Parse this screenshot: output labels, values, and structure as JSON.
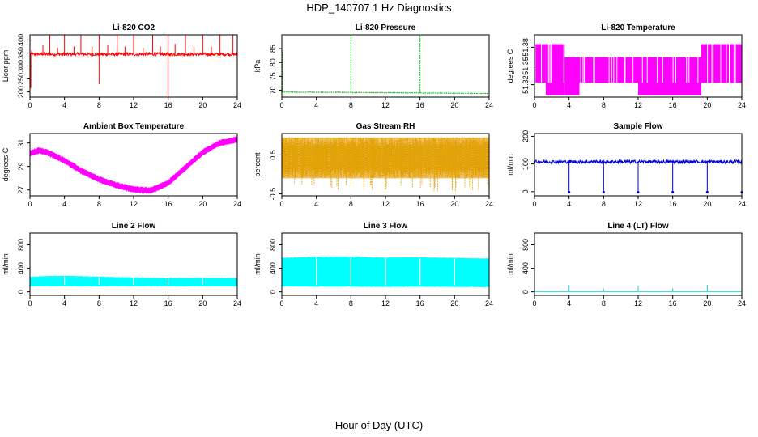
{
  "figure": {
    "title": "HDP_140707  1 Hz Diagnostics",
    "xlabel": "Hour of Day (UTC)"
  },
  "chart_data": [
    {
      "type": "line",
      "title": "Li-820 CO2",
      "ylabel": "Licor ppm",
      "color": "#ff0000",
      "xlim": [
        0,
        24
      ],
      "ylim": [
        180,
        420
      ],
      "xticks": [
        0,
        4,
        8,
        12,
        16,
        20,
        24
      ],
      "yticks": [
        200,
        250,
        300,
        350,
        400
      ],
      "baseline": 345,
      "noise": 6,
      "spikes": [
        {
          "x": 0.1,
          "y": 215
        },
        {
          "x": 0.2,
          "y": 360
        },
        {
          "x": 1.5,
          "y": 380
        },
        {
          "x": 2.3,
          "y": 440
        },
        {
          "x": 3.2,
          "y": 370
        },
        {
          "x": 4.0,
          "y": 440
        },
        {
          "x": 5.1,
          "y": 375
        },
        {
          "x": 5.9,
          "y": 440
        },
        {
          "x": 7.2,
          "y": 375
        },
        {
          "x": 8.0,
          "y": 230
        },
        {
          "x": 8.0,
          "y": 440
        },
        {
          "x": 9.0,
          "y": 380
        },
        {
          "x": 10.1,
          "y": 440
        },
        {
          "x": 11.0,
          "y": 375
        },
        {
          "x": 12.0,
          "y": 440
        },
        {
          "x": 13.1,
          "y": 370
        },
        {
          "x": 14.2,
          "y": 440
        },
        {
          "x": 15.1,
          "y": 375
        },
        {
          "x": 16.0,
          "y": 180
        },
        {
          "x": 16.0,
          "y": 440
        },
        {
          "x": 16.8,
          "y": 385
        },
        {
          "x": 18.0,
          "y": 440
        },
        {
          "x": 19.0,
          "y": 375
        },
        {
          "x": 20.0,
          "y": 440
        },
        {
          "x": 21.0,
          "y": 375
        },
        {
          "x": 22.0,
          "y": 440
        },
        {
          "x": 23.5,
          "y": 440
        },
        {
          "x": 24.0,
          "y": 320
        }
      ]
    },
    {
      "type": "line",
      "title": "Li-820 Pressure",
      "ylabel": "kPa",
      "color": "#00c000",
      "xlim": [
        0,
        24
      ],
      "ylim": [
        67.5,
        90
      ],
      "xticks": [
        0,
        4,
        8,
        12,
        16,
        20,
        24
      ],
      "yticks": [
        70,
        75,
        80,
        85
      ],
      "trend": [
        [
          0,
          69.3
        ],
        [
          8,
          69.2
        ],
        [
          16,
          69.0
        ],
        [
          24,
          68.8
        ]
      ],
      "noise": 0.2,
      "spikes": [
        {
          "x": 0.05,
          "y": 84.5
        },
        {
          "x": 8.0,
          "y": 90
        },
        {
          "x": 16.0,
          "y": 90
        },
        {
          "x": 24.0,
          "y": 88.5
        }
      ]
    },
    {
      "type": "line",
      "title": "Li-820 Temperature",
      "ylabel": "degrees C",
      "color": "#ff00ff",
      "xlim": [
        0,
        24
      ],
      "ylim": [
        51.3,
        51.4
      ],
      "xticks": [
        0,
        4,
        8,
        12,
        16,
        20,
        24
      ],
      "yticks": [
        51.32,
        51.35,
        51.38
      ],
      "yticklabels": [
        "51.32",
        "51.35",
        "51.38"
      ],
      "levels": [
        51.303,
        51.323,
        51.344,
        51.364,
        51.385
      ],
      "segments": [
        {
          "x0": 0,
          "x1": 1.3,
          "lo": 1,
          "hi": 4
        },
        {
          "x0": 1.3,
          "x1": 3.5,
          "lo": 0,
          "hi": 4
        },
        {
          "x0": 3.5,
          "x1": 5.2,
          "lo": 0,
          "hi": 3
        },
        {
          "x0": 5.2,
          "x1": 12.0,
          "lo": 1,
          "hi": 3
        },
        {
          "x0": 12.0,
          "x1": 19.3,
          "lo": 0,
          "hi": 3
        },
        {
          "x0": 19.3,
          "x1": 22.2,
          "lo": 1,
          "hi": 4
        },
        {
          "x0": 22.2,
          "x1": 24,
          "lo": 1,
          "hi": 4
        }
      ]
    },
    {
      "type": "line",
      "title": "Ambient Box Temperature",
      "ylabel": "degrees C",
      "color": "#ff00ff",
      "xlim": [
        0,
        24
      ],
      "ylim": [
        26.5,
        31.8
      ],
      "xticks": [
        0,
        4,
        8,
        12,
        16,
        20,
        24
      ],
      "yticks": [
        27,
        29,
        31
      ],
      "curve": [
        [
          0,
          30.1
        ],
        [
          1,
          30.35
        ],
        [
          2,
          30.2
        ],
        [
          4,
          29.5
        ],
        [
          6,
          28.6
        ],
        [
          8,
          27.9
        ],
        [
          10,
          27.4
        ],
        [
          12,
          27.05
        ],
        [
          14,
          26.95
        ],
        [
          16,
          27.6
        ],
        [
          18,
          28.9
        ],
        [
          20,
          30.2
        ],
        [
          22,
          31.0
        ],
        [
          24,
          31.3
        ]
      ],
      "band": 0.25
    },
    {
      "type": "line",
      "title": "Gas Stream RH",
      "ylabel": "percent",
      "color": "#e0a000",
      "xlim": [
        0,
        24
      ],
      "ylim": [
        -0.55,
        1.05
      ],
      "xticks": [
        0,
        4,
        8,
        12,
        16,
        20,
        24
      ],
      "yticks": [
        -0.5,
        0.5
      ],
      "yticklabels": [
        "-0.5",
        "0.5"
      ],
      "center": 0.45,
      "band_hi": 0.95,
      "band_lo": -0.1,
      "spike_lo": -0.45
    },
    {
      "type": "line",
      "title": "Sample Flow",
      "ylabel": "ml/min",
      "color": "#0000dd",
      "xlim": [
        0,
        24
      ],
      "ylim": [
        -15,
        210
      ],
      "xticks": [
        0,
        4,
        8,
        12,
        16,
        20,
        24
      ],
      "yticks": [
        0,
        100,
        200
      ],
      "baseline": 108,
      "noise": 6,
      "dips": [
        4,
        8,
        12,
        16,
        20,
        24
      ],
      "dip_value": -2
    },
    {
      "type": "area",
      "title": "Line 2 Flow",
      "ylabel": "ml/min",
      "color": "#00ffff",
      "xlim": [
        0,
        24
      ],
      "ylim": [
        -60,
        1000
      ],
      "xticks": [
        0,
        4,
        8,
        12,
        16,
        20,
        24
      ],
      "yticks": [
        0,
        400,
        800
      ],
      "band": [
        [
          0,
          100,
          250
        ],
        [
          4,
          100,
          265
        ],
        [
          8,
          100,
          250
        ],
        [
          12,
          100,
          235
        ],
        [
          16,
          100,
          225
        ],
        [
          20,
          100,
          230
        ],
        [
          24,
          100,
          225
        ]
      ],
      "gaps": [
        4,
        8,
        12,
        16,
        20
      ]
    },
    {
      "type": "area",
      "title": "Line 3 Flow",
      "ylabel": "ml/min",
      "color": "#00ffff",
      "xlim": [
        0,
        24
      ],
      "ylim": [
        -60,
        1000
      ],
      "xticks": [
        0,
        4,
        8,
        12,
        16,
        20,
        24
      ],
      "yticks": [
        0,
        400,
        800
      ],
      "band": [
        [
          0,
          100,
          570
        ],
        [
          4,
          95,
          590
        ],
        [
          8,
          95,
          590
        ],
        [
          12,
          90,
          575
        ],
        [
          16,
          95,
          580
        ],
        [
          20,
          90,
          570
        ],
        [
          24,
          90,
          560
        ]
      ],
      "gaps": [
        4,
        8,
        12,
        16,
        20
      ]
    },
    {
      "type": "line",
      "title": "Line 4 (LT) Flow",
      "ylabel": "ml/min",
      "color": "#00d8d8",
      "xlim": [
        0,
        24
      ],
      "ylim": [
        -60,
        1000
      ],
      "xticks": [
        0,
        4,
        8,
        12,
        16,
        20,
        24
      ],
      "yticks": [
        0,
        400,
        800
      ],
      "baseline": 5,
      "spikes": [
        {
          "x": 4.0,
          "y": 110
        },
        {
          "x": 8.0,
          "y": 55
        },
        {
          "x": 12.0,
          "y": 105
        },
        {
          "x": 16.0,
          "y": 60
        },
        {
          "x": 20.0,
          "y": 120
        },
        {
          "x": 24.0,
          "y": 50
        }
      ]
    }
  ]
}
